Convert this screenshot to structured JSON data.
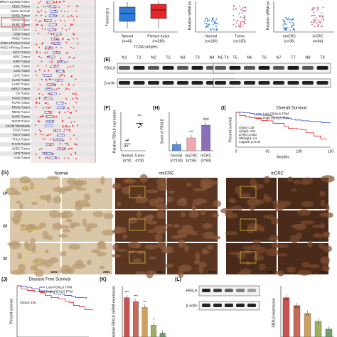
{
  "panel_a": {
    "rows": [
      "BRCA-Luminal Tumor",
      "CESC Tumor",
      "CHOL Normal",
      "CHOL Tumor",
      "COAD Tumor",
      "DLBC Tumor",
      "ESCA Tumor",
      "GBM Tumor",
      "HNSC Tumor",
      "HNSC-HPVpos Tumor",
      "HNSC-HPVneg Tumor",
      "KICH Tumor",
      "KIRC Tumor",
      "KIRP Tumor",
      "LAML Tumor",
      "LGG Tumor",
      "LIHC Tumor",
      "LUAD Tumor",
      "LUSC Tumor",
      "MESO Tumor",
      "OV Tumor",
      "PAAD Tumor",
      "PCPG Tumor",
      "PRAD Tumor",
      "READ Tumor",
      "SARC Tumor",
      "SKCM Tumor",
      "SKCM Metastasis",
      "STAD Tumor",
      "TGCT Tumor",
      "THCA Tumor",
      "THYM Tumor",
      "UCEC Tumor",
      "UCS Tumor",
      "UVM Tumor"
    ]
  },
  "panel_b": {
    "y_label": "Transcript p",
    "x_label": "TCGA samples",
    "groups": [
      {
        "name": "Normal",
        "n": "(n=41)"
      },
      {
        "name": "Primary tumor",
        "n": "(n=286)"
      }
    ]
  },
  "panel_c": {
    "y_label": "Relative mRNA ex",
    "groups": [
      {
        "name": "Normal",
        "n": "(n=100)"
      },
      {
        "name": "Tumor",
        "n": "(n=100)"
      }
    ]
  },
  "panel_d": {
    "y_label": "Relative mRNA ex",
    "groups": [
      {
        "name": "nmCRC",
        "n": "(n=36)"
      },
      {
        "name": "mCRC",
        "n": "(n=64)"
      }
    ]
  },
  "panel_e": {
    "label": "(E)",
    "lanes_left": [
      "N1",
      "T1",
      "N2",
      "T2",
      "N3",
      "T3",
      "N4",
      "T4"
    ],
    "lanes_right": [
      "N5",
      "T5",
      "N6",
      "T6",
      "N7",
      "T7",
      "N8",
      "T8"
    ],
    "proteins": [
      "FBXL8",
      "β-actin"
    ]
  },
  "panel_f": {
    "label": "(F)",
    "y_label": "Relative FBXL8 expression",
    "groups": [
      {
        "name": "Normal",
        "n": "(n=8)"
      },
      {
        "name": "Tumor",
        "n": "(n=8)"
      }
    ],
    "values": [
      0.25,
      1.0
    ],
    "ylim": [
      0,
      1.4
    ],
    "sig": "***"
  },
  "panel_h": {
    "label": "(H)",
    "y_label": "Score of FBXL8",
    "groups": [
      {
        "name": "Normal",
        "n": "(n=100)"
      },
      {
        "name": "nmCRC",
        "n": "(n=36)"
      },
      {
        "name": "mCRC",
        "n": "(n=64)"
      }
    ],
    "values": [
      1,
      2,
      4
    ],
    "ylim": [
      0,
      6
    ],
    "sig": [
      "***",
      "###"
    ]
  },
  "panel_i": {
    "label": "(I)",
    "title": "Overall Survival",
    "legend": [
      "Low FBXL8 TPM",
      "High FBXL8 TPM"
    ],
    "stats": [
      "n(low)=135",
      "n(high)=135",
      "p(HR)=0.053",
      "HR(high)=1.6",
      "Logrank p=0.05"
    ],
    "y_label": "Percent survival",
    "x_label": "Months",
    "xticks": [
      0,
      50,
      100,
      150
    ]
  },
  "panel_g": {
    "label": "(G)",
    "columns": [
      "Normal",
      "nmCRC",
      "mCRC"
    ],
    "rows": [
      "1#",
      "2#",
      "3#"
    ],
    "magnifications": [
      "100x",
      "200x"
    ]
  },
  "panel_j": {
    "label": "(J)",
    "title": "Disease Free Survival",
    "legend": [
      "Low FBXL8 TPM",
      "High FBXL8 TPM"
    ],
    "stats": [
      "n(low)=135"
    ],
    "y_label": "Percent survival"
  },
  "panel_k": {
    "label": "(K)",
    "y_label": "Relative FBXL8 mRNA expression",
    "values": [
      1.0,
      0.9,
      0.75,
      0.3,
      0.1
    ],
    "ylim": [
      0,
      1.3
    ],
    "sig": [
      "***",
      "***",
      "**",
      "*"
    ]
  },
  "panel_l": {
    "label": "(L)",
    "proteins": [
      "FBXL8",
      "β-actin"
    ],
    "y_label": "FBXL8 expression",
    "values": [
      1.0,
      0.8,
      0.6,
      0.4,
      0.2
    ],
    "ylim": [
      0,
      1.3
    ],
    "sig": [
      "***",
      "***",
      "**",
      "*"
    ]
  }
}
